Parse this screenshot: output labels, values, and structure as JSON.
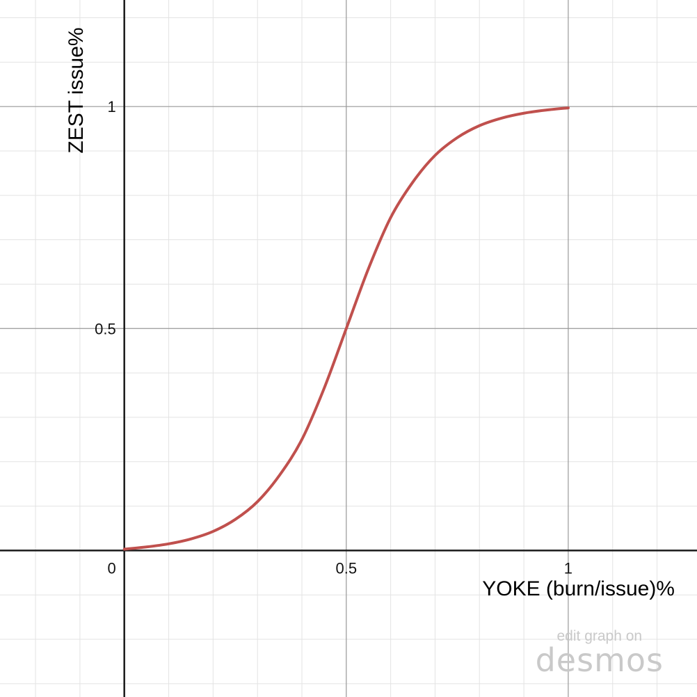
{
  "chart_data": {
    "type": "line",
    "xlabel": "YOKE (burn/issue)%",
    "ylabel": "ZEST issue%",
    "xlim": [
      -0.28,
      1.29
    ],
    "ylim": [
      -0.33,
      1.24
    ],
    "x_ticks": [
      {
        "value": 0,
        "label": "0"
      },
      {
        "value": 0.5,
        "label": "0.5"
      },
      {
        "value": 1,
        "label": "1"
      }
    ],
    "y_ticks": [
      {
        "value": 0.5,
        "label": "0.5"
      },
      {
        "value": 1,
        "label": "1"
      }
    ],
    "minor_grid_step": 0.1,
    "major_grid_step": 0.5,
    "grid": true,
    "series": [
      {
        "color": "#c0504d",
        "x": [
          0,
          0.05,
          0.1,
          0.15,
          0.2,
          0.25,
          0.3,
          0.35,
          0.4,
          0.45,
          0.5,
          0.55,
          0.6,
          0.65,
          0.7,
          0.75,
          0.8,
          0.85,
          0.9,
          0.95,
          1.0
        ],
        "y": [
          0.003,
          0.008,
          0.015,
          0.026,
          0.043,
          0.07,
          0.11,
          0.17,
          0.25,
          0.365,
          0.5,
          0.635,
          0.75,
          0.83,
          0.89,
          0.93,
          0.957,
          0.974,
          0.985,
          0.992,
          0.997
        ]
      }
    ]
  },
  "watermark": {
    "line1": "edit graph on",
    "brand": "desmos"
  }
}
